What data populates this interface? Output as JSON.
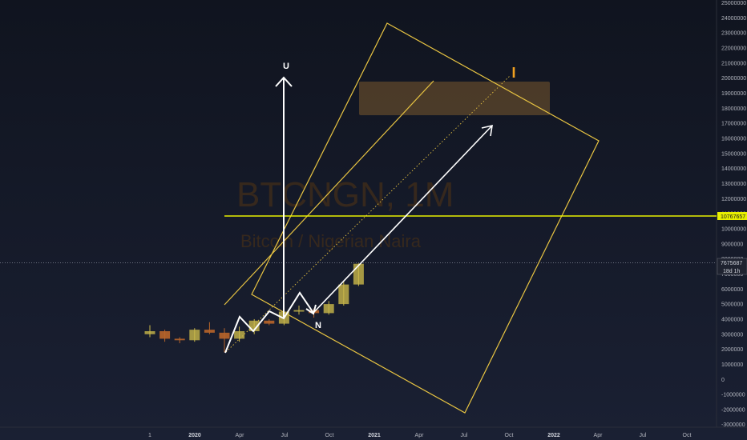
{
  "watermark": {
    "symbol": "BTCNGN, 1M",
    "name": "Bitcoin / Nigerian Naira"
  },
  "colors": {
    "background": "#161b29",
    "candle_up": "#c9b84a",
    "candle_down": "#b8652a",
    "drawing_yellow": "#e8c442",
    "drawing_white": "#ffffff",
    "zone_fill": "#7a5a2e",
    "axis_text": "#b2b5be"
  },
  "chart_data": {
    "type": "candlestick",
    "y_axis": {
      "ticks": [
        25000000,
        24000000,
        23000000,
        22000000,
        21000000,
        20000000,
        19000000,
        18000000,
        17000000,
        16000000,
        15000000,
        14000000,
        13000000,
        12000000,
        11000000,
        10000000,
        9000000,
        8000000,
        7000000,
        6000000,
        5000000,
        4000000,
        3000000,
        2000000,
        1000000,
        0,
        -1000000,
        -2000000,
        -3000000
      ],
      "ylim": [
        -3000000,
        25000000
      ]
    },
    "x_axis": {
      "ticks": [
        {
          "label": "1",
          "major": false
        },
        {
          "label": "2020",
          "major": true
        },
        {
          "label": "Apr",
          "major": false
        },
        {
          "label": "Jul",
          "major": false
        },
        {
          "label": "Oct",
          "major": false
        },
        {
          "label": "2021",
          "major": true
        },
        {
          "label": "Apr",
          "major": false
        },
        {
          "label": "Jul",
          "major": false
        },
        {
          "label": "Oct",
          "major": false
        },
        {
          "label": "2022",
          "major": true
        },
        {
          "label": "Apr",
          "major": false
        },
        {
          "label": "Jul",
          "major": false
        },
        {
          "label": "Oct",
          "major": false
        }
      ]
    },
    "candles": [
      {
        "date": "2019-10",
        "open": 3000000,
        "high": 3600000,
        "low": 2800000,
        "close": 3200000
      },
      {
        "date": "2019-11",
        "open": 3200000,
        "high": 3300000,
        "low": 2500000,
        "close": 2700000
      },
      {
        "date": "2019-12",
        "open": 2700000,
        "high": 2800000,
        "low": 2400000,
        "close": 2600000
      },
      {
        "date": "2020-01",
        "open": 2600000,
        "high": 3400000,
        "low": 2500000,
        "close": 3300000
      },
      {
        "date": "2020-02",
        "open": 3300000,
        "high": 3800000,
        "low": 3000000,
        "close": 3100000
      },
      {
        "date": "2020-03",
        "open": 3100000,
        "high": 3400000,
        "low": 1800000,
        "close": 2700000
      },
      {
        "date": "2020-04",
        "open": 2700000,
        "high": 3500000,
        "low": 2500000,
        "close": 3200000
      },
      {
        "date": "2020-05",
        "open": 3200000,
        "high": 4000000,
        "low": 3000000,
        "close": 3900000
      },
      {
        "date": "2020-06",
        "open": 3900000,
        "high": 4000000,
        "low": 3600000,
        "close": 3700000
      },
      {
        "date": "2020-07",
        "open": 3700000,
        "high": 4700000,
        "low": 3600000,
        "close": 4500000
      },
      {
        "date": "2020-08",
        "open": 4500000,
        "high": 4900000,
        "low": 4300000,
        "close": 4600000
      },
      {
        "date": "2020-09",
        "open": 4600000,
        "high": 4700000,
        "low": 4100000,
        "close": 4400000
      },
      {
        "date": "2020-10",
        "open": 4400000,
        "high": 5200000,
        "low": 4300000,
        "close": 5000000
      },
      {
        "date": "2020-11",
        "open": 5000000,
        "high": 6500000,
        "low": 4900000,
        "close": 6300000
      },
      {
        "date": "2020-12",
        "open": 6300000,
        "high": 7700000,
        "low": 6200000,
        "close": 7676000
      }
    ],
    "horizontal_line": {
      "value": 10767657,
      "label": "10767657"
    },
    "current_price": {
      "value": 7675687,
      "label": "7675687",
      "countdown": "18d 1h"
    },
    "labels": {
      "u": "U",
      "n": "N",
      "i": "I"
    },
    "zone": {
      "from": 17400000,
      "to": 19700000
    }
  }
}
